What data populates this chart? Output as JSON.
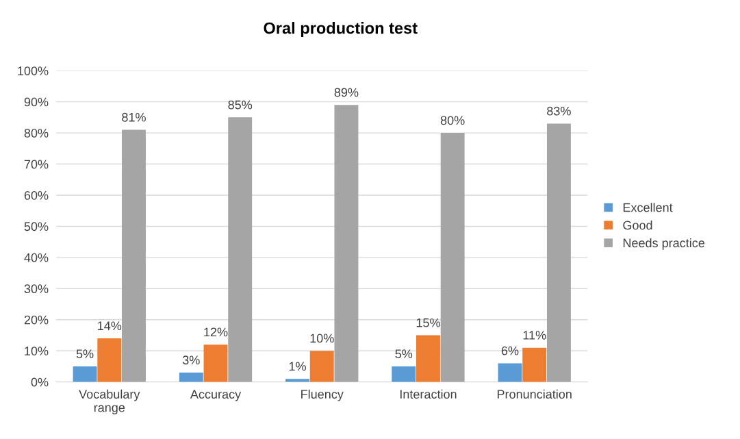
{
  "chart_data": {
    "type": "bar",
    "title": "Oral production test",
    "categories": [
      "Vocabulary\nrange",
      "Accuracy",
      "Fluency",
      "Interaction",
      "Pronunciation"
    ],
    "series": [
      {
        "name": "Excellent",
        "color": "#5b9bd5",
        "values": [
          5,
          3,
          1,
          5,
          6
        ],
        "value_labels": [
          "5%",
          "3%",
          "1%",
          "5%",
          "6%"
        ]
      },
      {
        "name": "Good",
        "color": "#ed7d31",
        "values": [
          14,
          12,
          10,
          15,
          11
        ],
        "value_labels": [
          "14%",
          "12%",
          "10%",
          "15%",
          "11%"
        ]
      },
      {
        "name": "Needs practice",
        "color": "#a5a5a5",
        "values": [
          81,
          85,
          89,
          80,
          83
        ],
        "value_labels": [
          "81%",
          "85%",
          "89%",
          "80%",
          "83%"
        ]
      }
    ],
    "ylim": [
      0,
      100
    ],
    "yticks": [
      {
        "value": 0,
        "label": "0%"
      },
      {
        "value": 10,
        "label": "10%"
      },
      {
        "value": 20,
        "label": "20%"
      },
      {
        "value": 30,
        "label": "30%"
      },
      {
        "value": 40,
        "label": "40%"
      },
      {
        "value": 50,
        "label": "50%"
      },
      {
        "value": 60,
        "label": "60%"
      },
      {
        "value": 70,
        "label": "70%"
      },
      {
        "value": 80,
        "label": "80%"
      },
      {
        "value": 90,
        "label": "90%"
      },
      {
        "value": 100,
        "label": "100%"
      }
    ],
    "grid": "y",
    "legend": "right"
  }
}
